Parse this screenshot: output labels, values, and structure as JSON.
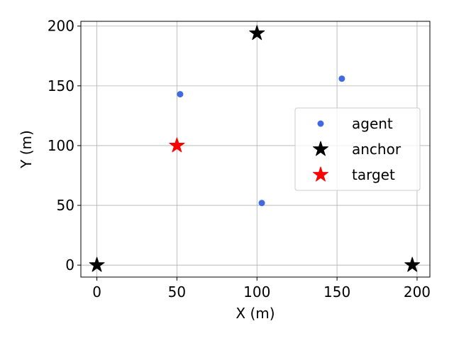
{
  "chart_data": {
    "type": "scatter",
    "title": "",
    "xlabel": "X (m)",
    "ylabel": "Y (m)",
    "xlim": [
      -10,
      208
    ],
    "ylim": [
      -10,
      204
    ],
    "xticks": [
      0,
      50,
      100,
      150,
      200
    ],
    "xtick_labels": [
      "0",
      "50",
      "100",
      "150",
      "200"
    ],
    "yticks": [
      0,
      50,
      100,
      150,
      200
    ],
    "ytick_labels": [
      "0",
      "50",
      "100",
      "150",
      "200"
    ],
    "grid": true,
    "legend_position": "center-right",
    "series": [
      {
        "name": "agent",
        "marker": "circle",
        "color": "#4169e1",
        "points": [
          [
            52,
            143
          ],
          [
            153,
            156
          ],
          [
            103,
            52
          ]
        ]
      },
      {
        "name": "anchor",
        "marker": "star",
        "color": "#000000",
        "points": [
          [
            100,
            194
          ],
          [
            0,
            0
          ],
          [
            197,
            0
          ]
        ]
      },
      {
        "name": "target",
        "marker": "star",
        "color": "#ff0000",
        "points": [
          [
            50,
            100
          ]
        ]
      }
    ]
  }
}
